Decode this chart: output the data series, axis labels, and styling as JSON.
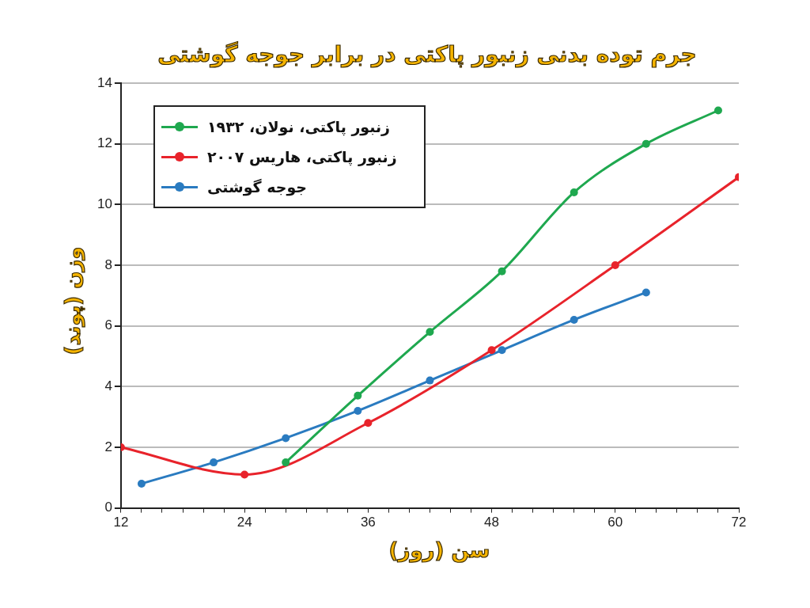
{
  "chart_data": {
    "type": "line",
    "title": "جرم توده بدنی زنبور پاکتی در برابر جوجه گوشتی",
    "xlabel": "سن (روز)",
    "ylabel": "وزن (پوند)",
    "series": [
      {
        "name": "زنبور پاکتی، نولان، ۱۹۳۲",
        "color": "#1fa84f",
        "x": [
          28,
          35,
          42,
          49,
          56,
          63,
          70
        ],
        "values": [
          1.5,
          3.7,
          5.8,
          7.8,
          10.4,
          12.0,
          13.1
        ]
      },
      {
        "name": "زنبور پاکتی، هاریس ۲۰۰۷",
        "color": "#e8232b",
        "x": [
          12,
          24,
          36,
          48,
          60,
          72
        ],
        "values": [
          2.0,
          1.1,
          2.8,
          5.2,
          8.0,
          10.9
        ]
      },
      {
        "name": "جوجه گوشتی",
        "color": "#2a7bc0",
        "x": [
          14,
          21,
          28,
          35,
          42,
          49,
          56,
          63
        ],
        "values": [
          0.8,
          1.5,
          2.3,
          3.2,
          4.2,
          5.2,
          6.2,
          7.1
        ]
      }
    ],
    "xlim": [
      12,
      72
    ],
    "xticks": [
      12,
      {
        "value": 14,
        "label": null
      },
      {
        "value": 16,
        "label": null
      },
      {
        "value": 18,
        "label": null
      },
      {
        "value": 20,
        "label": null
      },
      {
        "value": 22,
        "label": null
      },
      24,
      {
        "value": 26,
        "label": null
      },
      {
        "value": 28,
        "label": null
      },
      {
        "value": 30,
        "label": null
      },
      {
        "value": 32,
        "label": null
      },
      {
        "value": 34,
        "label": null
      },
      36,
      {
        "value": 38,
        "label": null
      },
      {
        "value": 40,
        "label": null
      },
      {
        "value": 42,
        "label": null
      },
      {
        "value": 44,
        "label": null
      },
      {
        "value": 46,
        "label": null
      },
      48,
      {
        "value": 50,
        "label": null
      },
      {
        "value": 52,
        "label": null
      },
      {
        "value": 54,
        "label": null
      },
      {
        "value": 56,
        "label": null
      },
      {
        "value": 58,
        "label": null
      },
      60,
      {
        "value": 62,
        "label": null
      },
      {
        "value": 64,
        "label": null
      },
      {
        "value": 66,
        "label": null
      },
      {
        "value": 68,
        "label": null
      },
      {
        "value": 70,
        "label": null
      },
      72
    ],
    "ylim": [
      0,
      14
    ],
    "yticks": [
      0,
      2,
      4,
      6,
      8,
      10,
      12,
      14
    ],
    "grid": "y",
    "legend": "top left",
    "marker": "circle",
    "line_style": "solid"
  }
}
